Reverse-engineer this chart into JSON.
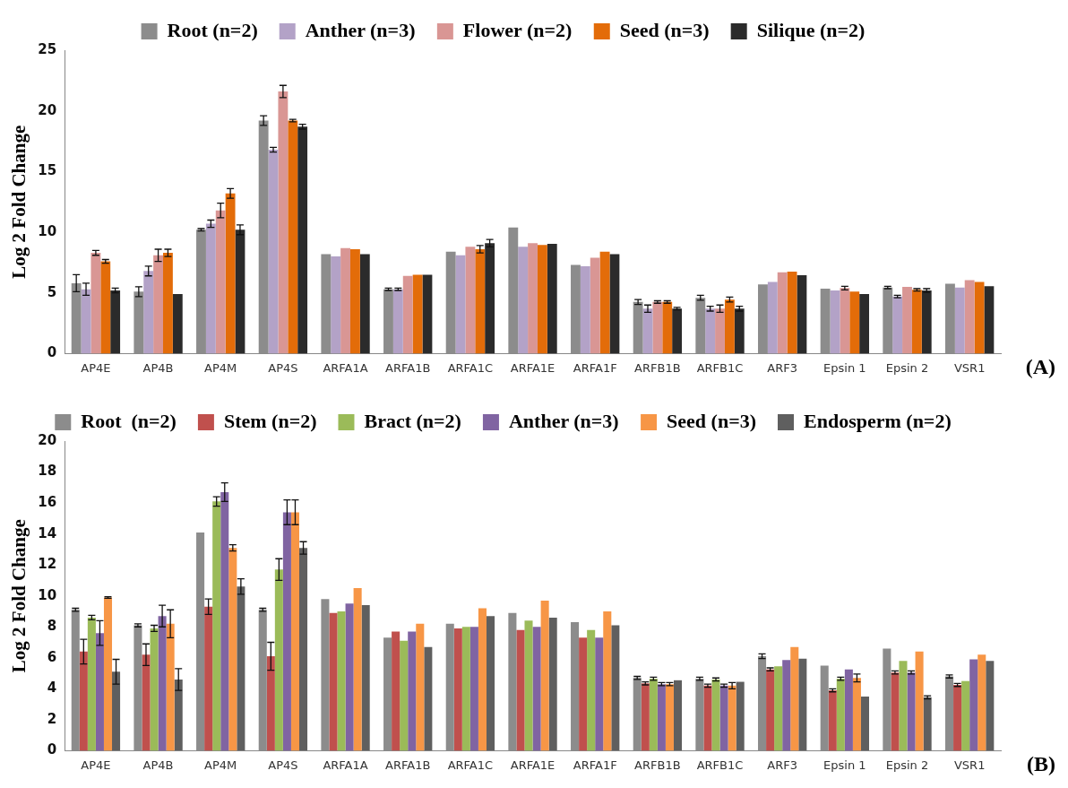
{
  "chart_data": [
    {
      "type": "bar",
      "ylabel": "Log 2 Fold Change",
      "annotations": [
        "(A)"
      ],
      "legend": "top",
      "grid": false,
      "categories": [
        "AP4E",
        "AP4B",
        "AP4M",
        "AP4S",
        "ARFA1A",
        "ARFA1B",
        "ARFA1C",
        "ARFA1E",
        "ARFA1F",
        "ARFB1B",
        "ARFB1C",
        "ARF3",
        "Epsin 1",
        "Epsin 2",
        "VSR1"
      ],
      "ylim": [
        0,
        25
      ],
      "yticks": [
        0,
        5,
        10,
        15,
        20,
        25
      ],
      "series": [
        {
          "name": "Root (n=2)",
          "color": "#8c8c8c",
          "values": [
            5.8,
            5.1,
            10.2,
            19.2,
            8.2,
            5.3,
            8.4,
            10.4,
            7.3,
            4.25,
            4.6,
            5.7,
            5.35,
            5.45,
            5.75
          ],
          "errors": [
            0.7,
            0.4,
            0.1,
            0.4,
            null,
            0.1,
            null,
            null,
            null,
            0.2,
            0.2,
            null,
            null,
            0.1,
            null
          ]
        },
        {
          "name": "Anther (n=3)",
          "color": "#b3a2c7",
          "values": [
            5.3,
            6.8,
            10.7,
            16.8,
            8.0,
            5.3,
            8.1,
            8.8,
            7.2,
            3.7,
            3.7,
            5.9,
            5.2,
            4.7,
            5.45
          ],
          "errors": [
            0.5,
            0.4,
            0.3,
            0.2,
            null,
            0.1,
            null,
            null,
            null,
            0.3,
            0.2,
            null,
            null,
            0.1,
            null
          ]
        },
        {
          "name": "Flower (n=2)",
          "color": "#d99694",
          "values": [
            8.3,
            8.1,
            11.8,
            21.6,
            8.7,
            6.4,
            8.8,
            9.1,
            7.9,
            4.25,
            3.7,
            6.7,
            5.4,
            5.5,
            6.05
          ],
          "errors": [
            0.2,
            0.5,
            0.6,
            0.5,
            null,
            null,
            null,
            null,
            null,
            0.1,
            0.3,
            null,
            0.15,
            null,
            null
          ]
        },
        {
          "name": "Seed (n=3)",
          "color": "#e36c09",
          "values": [
            7.6,
            8.3,
            13.2,
            19.2,
            8.6,
            6.5,
            8.6,
            8.95,
            8.4,
            4.25,
            4.45,
            6.75,
            5.1,
            5.25,
            5.9
          ],
          "errors": [
            0.15,
            0.3,
            0.4,
            0.1,
            null,
            null,
            0.3,
            null,
            null,
            0.1,
            0.2,
            null,
            null,
            0.1,
            null
          ]
        },
        {
          "name": "Silique (n=2)",
          "color": "#2b2b2b",
          "values": [
            5.2,
            4.9,
            10.2,
            18.7,
            8.2,
            6.5,
            9.1,
            9.05,
            8.2,
            3.7,
            3.7,
            6.45,
            4.9,
            5.2,
            5.55
          ],
          "errors": [
            0.2,
            null,
            0.4,
            0.2,
            null,
            null,
            0.3,
            null,
            null,
            0.1,
            0.2,
            null,
            null,
            0.15,
            null
          ]
        }
      ]
    },
    {
      "type": "bar",
      "ylabel": "Log 2 Fold Change",
      "annotations": [
        "(B)"
      ],
      "legend": "top",
      "grid": false,
      "categories": [
        "AP4E",
        "AP4B",
        "AP4M",
        "AP4S",
        "ARFA1A",
        "ARFA1B",
        "ARFA1C",
        "ARFA1E",
        "ARFA1F",
        "ARFB1B",
        "ARFB1C",
        "ARF3",
        "Epsin 1",
        "Epsin 2",
        "VSR1"
      ],
      "ylim": [
        0,
        20
      ],
      "yticks": [
        0,
        2,
        4,
        6,
        8,
        10,
        12,
        14,
        16,
        18,
        20
      ],
      "series": [
        {
          "name": "Root  (n=2)",
          "color": "#8c8c8c",
          "values": [
            9.1,
            8.1,
            14.1,
            9.1,
            9.8,
            7.3,
            8.2,
            8.9,
            8.3,
            4.7,
            4.65,
            6.1,
            5.5,
            6.6,
            4.8
          ],
          "errors": [
            0.1,
            0.1,
            null,
            0.1,
            null,
            null,
            null,
            null,
            null,
            0.1,
            0.1,
            0.15,
            null,
            null,
            0.1
          ]
        },
        {
          "name": "Stem (n=2)",
          "color": "#c0504d",
          "values": [
            6.4,
            6.2,
            9.3,
            6.1,
            8.9,
            7.7,
            7.9,
            7.8,
            7.3,
            4.35,
            4.2,
            5.25,
            3.9,
            5.05,
            4.25
          ],
          "errors": [
            0.8,
            0.7,
            0.5,
            0.9,
            null,
            null,
            null,
            null,
            null,
            0.1,
            0.1,
            0.1,
            0.1,
            0.1,
            0.1
          ]
        },
        {
          "name": "Bract (n=2)",
          "color": "#9bbb59",
          "values": [
            8.6,
            7.9,
            16.1,
            11.7,
            9.0,
            7.1,
            8.0,
            8.4,
            7.8,
            4.65,
            4.6,
            5.45,
            4.65,
            5.8,
            4.5
          ],
          "errors": [
            0.15,
            0.2,
            0.3,
            0.7,
            null,
            null,
            null,
            null,
            null,
            0.1,
            0.1,
            null,
            0.1,
            null,
            null
          ]
        },
        {
          "name": "Anther (n=3)",
          "color": "#8064a2",
          "values": [
            7.6,
            8.7,
            16.7,
            15.4,
            9.5,
            7.7,
            8.0,
            8.0,
            7.3,
            4.3,
            4.2,
            5.85,
            5.25,
            5.05,
            5.9
          ],
          "errors": [
            0.8,
            0.7,
            0.6,
            0.8,
            null,
            null,
            null,
            null,
            null,
            0.1,
            0.1,
            null,
            null,
            0.1,
            null
          ]
        },
        {
          "name": "Seed (n=3)",
          "color": "#f79646",
          "values": [
            9.9,
            8.2,
            13.1,
            15.4,
            10.5,
            8.2,
            9.2,
            9.7,
            9.0,
            4.3,
            4.2,
            6.7,
            4.7,
            6.4,
            6.2
          ],
          "errors": [
            0.05,
            0.9,
            0.2,
            0.8,
            null,
            null,
            null,
            null,
            null,
            0.1,
            0.2,
            null,
            0.25,
            null,
            null
          ]
        },
        {
          "name": "Endosperm (n=2)",
          "color": "#5f5f5f",
          "values": [
            5.1,
            4.6,
            10.6,
            13.1,
            9.4,
            6.7,
            8.7,
            8.6,
            8.1,
            4.55,
            4.45,
            5.95,
            3.5,
            3.45,
            5.8
          ],
          "errors": [
            0.8,
            0.7,
            0.5,
            0.4,
            null,
            null,
            null,
            null,
            null,
            null,
            null,
            null,
            null,
            0.1,
            null
          ]
        }
      ]
    }
  ]
}
